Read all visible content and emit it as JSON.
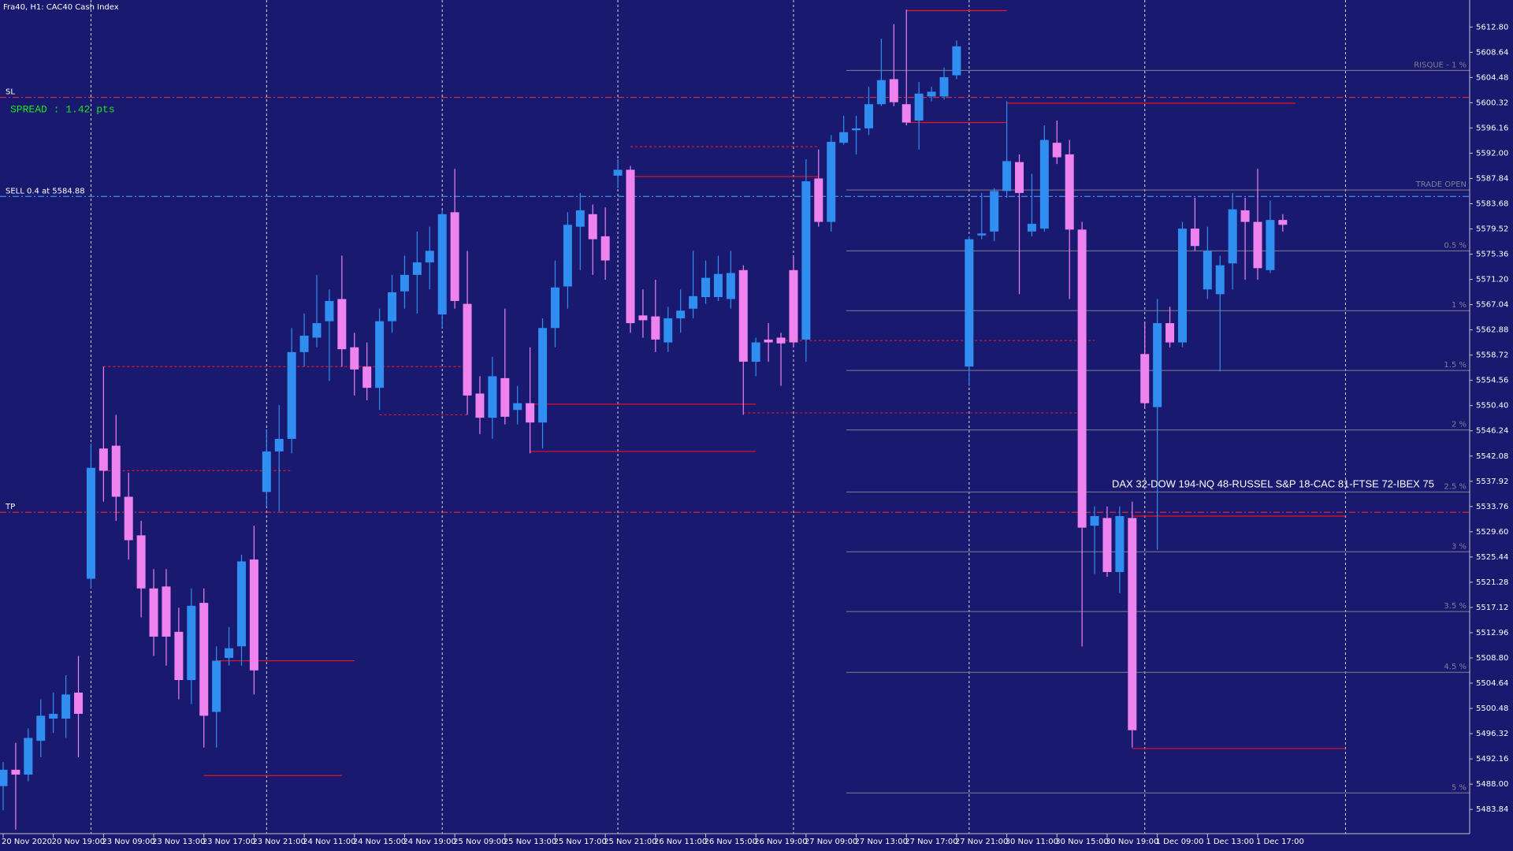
{
  "chart_data": {
    "type": "candlestick",
    "title": "Fra40, H1:  CAC40 Cash Index",
    "up_color": "#2f8ef0",
    "down_color": "#ee82ee",
    "background": "#191970",
    "grid": true,
    "categories": [
      "20 Nov 2020",
      null,
      null,
      null,
      "20 Nov 19:00",
      null,
      null,
      null,
      "23 Nov 09:00",
      null,
      null,
      null,
      "23 Nov 13:00",
      null,
      null,
      null,
      "23 Nov 17:00",
      null,
      null,
      null,
      "23 Nov 21:00",
      null,
      null,
      null,
      "24 Nov 11:00",
      null,
      null,
      null,
      "24 Nov 15:00",
      null,
      null,
      null,
      "24 Nov 19:00",
      null,
      null,
      null,
      "25 Nov 09:00",
      null,
      null,
      null,
      "25 Nov 13:00",
      null,
      null,
      null,
      "25 Nov 17:00",
      null,
      null,
      null,
      "25 Nov 21:00",
      null,
      null,
      null,
      "26 Nov 11:00",
      null,
      null,
      null,
      "26 Nov 15:00",
      null,
      null,
      null,
      "26 Nov 19:00",
      null,
      null,
      null,
      "27 Nov 09:00",
      null,
      null,
      null,
      "27 Nov 13:00",
      null,
      null,
      null,
      "27 Nov 17:00",
      null,
      null,
      null,
      "27 Nov 21:00",
      null,
      null,
      null,
      "30 Nov 11:00",
      null,
      null,
      null,
      "30 Nov 15:00",
      null,
      null,
      null,
      "30 Nov 19:00",
      null,
      null,
      null,
      "1 Dec 09:00",
      null,
      null,
      null,
      "1 Dec 13:00",
      null,
      null,
      null,
      "1 Dec 17:00",
      null,
      null
    ],
    "open": [
      5487.67,
      5490.37,
      5489.57,
      5495.14,
      5498.8,
      5498.8,
      5503.09,
      5521.85,
      5543.32,
      5543.79,
      5535.37,
      5529.01,
      5520.26,
      5520.58,
      5513.11,
      5505.16,
      5517.88,
      5499.91,
      5508.81,
      5510.72,
      5525.03,
      5536.16,
      5542.84,
      5544.91,
      5559.22,
      5561.6,
      5564.3,
      5567.96,
      5560.01,
      5556.83,
      5553.33,
      5564.3,
      5569.23,
      5571.94,
      5574.0,
      5565.42,
      5582.27,
      5567.17,
      5552.38,
      5548.4,
      5554.92,
      5549.68,
      5550.79,
      5547.61,
      5563.19,
      5570.03,
      5579.89,
      5581.95,
      5578.3,
      5588.31,
      5589.27,
      5565.26,
      5565.1,
      5560.81,
      5564.78,
      5566.37,
      5568.28,
      5568.28,
      5567.96,
      5572.73,
      5557.63,
      5561.28,
      5561.6,
      5572.73,
      5561.28,
      5587.84,
      5580.68,
      5593.72,
      5595.78,
      5596.1,
      5600.08,
      5604.21,
      5600.08,
      5597.38,
      5601.35,
      5601.35,
      5604.85,
      5556.83,
      5578.45,
      5579.09,
      5585.77,
      5590.54,
      5579.09,
      5579.57,
      5593.72,
      5591.81,
      5579.41,
      5530.6,
      5531.87,
      5522.96,
      5531.87,
      5558.9,
      5550.15,
      5563.99,
      5560.81,
      5579.57,
      5569.55,
      5568.76,
      5573.84,
      5582.59,
      5580.68,
      5572.73,
      5581.0
    ],
    "high": [
      5491.64,
      5494.82,
      5497.21,
      5501.98,
      5503.09,
      5505.95,
      5509.13,
      5544.11,
      5556.83,
      5548.88,
      5539.34,
      5531.39,
      5523.44,
      5523.44,
      5517.08,
      5520.26,
      5520.26,
      5510.72,
      5513.9,
      5525.83,
      5530.6,
      5546.5,
      5550.47,
      5563.19,
      5565.58,
      5571.94,
      5569.55,
      5575.12,
      5562.4,
      5560.81,
      5566.37,
      5571.94,
      5575.12,
      5579.09,
      5579.89,
      5582.59,
      5589.43,
      5575.91,
      5555.24,
      5558.42,
      5566.37,
      5553.65,
      5560.01,
      5564.78,
      5574.32,
      5582.27,
      5585.45,
      5583.54,
      5583.07,
      5591.02,
      5589.9,
      5569.55,
      5571.14,
      5566.69,
      5569.55,
      5575.91,
      5574.32,
      5575.12,
      5575.91,
      5573.53,
      5561.6,
      5563.99,
      5562.4,
      5575.12,
      5591.02,
      5592.61,
      5594.99,
      5598.17,
      5598.17,
      5602.94,
      5610.89,
      5613.28,
      5615.66,
      5603.74,
      5602.94,
      5606.12,
      5610.57,
      5578.3,
      5585.45,
      5586.25,
      5600.56,
      5591.81,
      5588.63,
      5596.58,
      5597.38,
      5594.19,
      5580.68,
      5533.78,
      5533.78,
      5533.78,
      5534.57,
      5563.99,
      5567.96,
      5566.69,
      5580.68,
      5584.66,
      5579.89,
      5575.12,
      5585.45,
      5584.66,
      5589.43,
      5584.18,
      5581.95
    ],
    "low": [
      5483.69,
      5480.51,
      5488.46,
      5492.44,
      5496.41,
      5495.62,
      5492.44,
      5520.26,
      5534.57,
      5531.39,
      5525.03,
      5515.49,
      5509.13,
      5507.54,
      5501.98,
      5501.18,
      5494.03,
      5494.03,
      5507.54,
      5507.54,
      5502.77,
      5533.78,
      5532.98,
      5542.52,
      5556.83,
      5560.01,
      5554.45,
      5556.83,
      5552.06,
      5551.27,
      5549.68,
      5562.4,
      5566.37,
      5565.58,
      5569.55,
      5563.19,
      5566.37,
      5548.88,
      5545.7,
      5544.91,
      5547.29,
      5547.29,
      5542.52,
      5543.32,
      5560.01,
      5566.37,
      5572.73,
      5571.94,
      5571.14,
      5586.25,
      5562.4,
      5561.6,
      5559.22,
      5559.22,
      5562.4,
      5564.78,
      5567.17,
      5567.64,
      5566.37,
      5548.88,
      5555.24,
      5557.63,
      5553.65,
      5560.01,
      5557.63,
      5579.89,
      5579.09,
      5593.4,
      5591.81,
      5594.99,
      5599.76,
      5599.76,
      5596.58,
      5592.61,
      5600.56,
      5600.87,
      5604.21,
      5553.65,
      5577.82,
      5577.5,
      5584.66,
      5568.76,
      5578.3,
      5579.09,
      5590.22,
      5567.96,
      5510.72,
      5522.65,
      5522.17,
      5519.47,
      5494.03,
      5550.15,
      5526.62,
      5560.01,
      5560.01,
      5575.91,
      5567.96,
      5556.04,
      5569.55,
      5571.14,
      5571.14,
      5572.25,
      5579.09
    ],
    "close": [
      5490.37,
      5489.57,
      5495.62,
      5499.27,
      5499.59,
      5502.77,
      5499.59,
      5540.14,
      5539.66,
      5535.37,
      5528.21,
      5520.26,
      5512.31,
      5512.31,
      5505.16,
      5517.4,
      5499.27,
      5508.34,
      5510.4,
      5524.71,
      5506.75,
      5542.84,
      5544.91,
      5559.22,
      5561.92,
      5563.99,
      5567.64,
      5559.69,
      5556.35,
      5553.33,
      5564.3,
      5569.07,
      5571.94,
      5574.0,
      5575.91,
      5581.95,
      5567.64,
      5552.06,
      5548.4,
      5555.24,
      5548.56,
      5550.79,
      5547.61,
      5563.19,
      5569.87,
      5580.2,
      5582.59,
      5577.82,
      5574.32,
      5589.27,
      5563.99,
      5564.46,
      5561.28,
      5564.78,
      5566.05,
      5568.44,
      5571.46,
      5572.09,
      5572.25,
      5557.63,
      5560.81,
      5560.81,
      5560.65,
      5560.81,
      5587.36,
      5580.68,
      5593.88,
      5595.47,
      5596.1,
      5600.08,
      5604.05,
      5600.4,
      5597.06,
      5601.83,
      5602.14,
      5604.53,
      5609.62,
      5577.82,
      5578.77,
      5585.77,
      5590.7,
      5585.45,
      5580.36,
      5594.19,
      5591.33,
      5579.41,
      5530.28,
      5532.18,
      5522.96,
      5532.18,
      5496.89,
      5550.79,
      5563.99,
      5560.81,
      5579.57,
      5576.7,
      5575.91,
      5573.53,
      5582.75,
      5580.68,
      5573.05,
      5581.0,
      5580.2
    ],
    "ylim": [
      5480.16,
      5616.93
    ],
    "yticks": [
      {
        "value": 5612.8,
        "label": "5612.80"
      },
      5608.64,
      5604.48,
      5600.32,
      5596.16,
      {
        "value": 5592,
        "label": "5592.00"
      },
      5587.84,
      5583.68,
      5579.52,
      5575.36,
      {
        "value": 5571.2,
        "label": "5571.20"
      },
      5567.04,
      5562.88,
      5558.72,
      5554.56,
      {
        "value": 5550.4,
        "label": "5550.40"
      },
      5546.24,
      5542.08,
      5537.92,
      5533.76,
      {
        "value": 5529.6,
        "label": "5529.60"
      },
      5525.44,
      5521.28,
      5517.12,
      5512.96,
      {
        "value": 5508.8,
        "label": "5508.80"
      },
      5504.64,
      5500.48,
      5496.32,
      5492.16,
      {
        "value": 5488,
        "label": "5488.00"
      },
      5483.84
    ],
    "levels": [
      {
        "label": "SL",
        "value": 5601.19,
        "color": "#ff3030"
      },
      {
        "label": "SELL 0.4 at 5584.88",
        "value": 5584.88,
        "color": "#4fa8ff"
      },
      {
        "label": "TP",
        "value": 5532.82,
        "color": "#ff3030"
      }
    ],
    "risk_levels": [
      {
        "label": "RISQUE - 1 %",
        "value": 5605.64
      },
      {
        "label": "TRADE OPEN",
        "value": 5585.93
      },
      {
        "label": "0.5 %",
        "value": 5575.91
      },
      {
        "label": "1 %",
        "value": 5566.05
      },
      {
        "label": "1.5 %",
        "value": 5556.19
      },
      {
        "label": "2 %",
        "value": 5546.39
      },
      {
        "label": "2.5 %",
        "value": 5536.16
      },
      {
        "label": "3 %",
        "value": 5526.3
      },
      {
        "label": "3.5 %",
        "value": 5516.44
      },
      {
        "label": "4.5 %",
        "value": 5506.43
      },
      {
        "label": "5 %",
        "value": 5486.55
      }
    ],
    "risk_color": "#7f7f8f",
    "order_color": "#e8141e",
    "order_lines": [
      {
        "value": 5556.83,
        "from": 8,
        "to": 37,
        "dashed": true
      },
      {
        "value": 5539.66,
        "from": 8,
        "to": 23,
        "dashed": true
      },
      {
        "value": 5508.34,
        "from": 17,
        "to": 28,
        "dashed": false
      },
      {
        "value": 5489.41,
        "from": 16,
        "to": 27,
        "dashed": false
      },
      {
        "value": 5548.88,
        "from": 30,
        "to": 37,
        "dashed": true
      },
      {
        "value": 5550.63,
        "from": 42,
        "to": 60,
        "dashed": false
      },
      {
        "value": 5542.84,
        "from": 42,
        "to": 60,
        "dashed": false
      },
      {
        "value": 5593.08,
        "from": 50,
        "to": 65,
        "dashed": true
      },
      {
        "value": 5588.15,
        "from": 50,
        "to": 65,
        "dashed": false
      },
      {
        "value": 5561.12,
        "from": 62,
        "to": 87,
        "dashed": true
      },
      {
        "value": 5549.2,
        "from": 59,
        "to": 86,
        "dashed": true
      },
      {
        "value": 5615.5,
        "from": 72,
        "to": 80,
        "dashed": false
      },
      {
        "value": 5597.06,
        "from": 72,
        "to": 80,
        "dashed": false
      },
      {
        "value": 5600.24,
        "from": 80,
        "to": 103,
        "dashed": false
      },
      {
        "value": 5532.18,
        "from": 90,
        "to": 107,
        "dashed": false
      },
      {
        "value": 5493.87,
        "from": 90,
        "to": 107,
        "dashed": false
      }
    ],
    "spread": "SPREAD : 1.42 pts",
    "markets": "DAX 32-DOW 194-NQ 48-RUSSEL S&P 18-CAC 81-FTSE 72-IBEX 75"
  }
}
